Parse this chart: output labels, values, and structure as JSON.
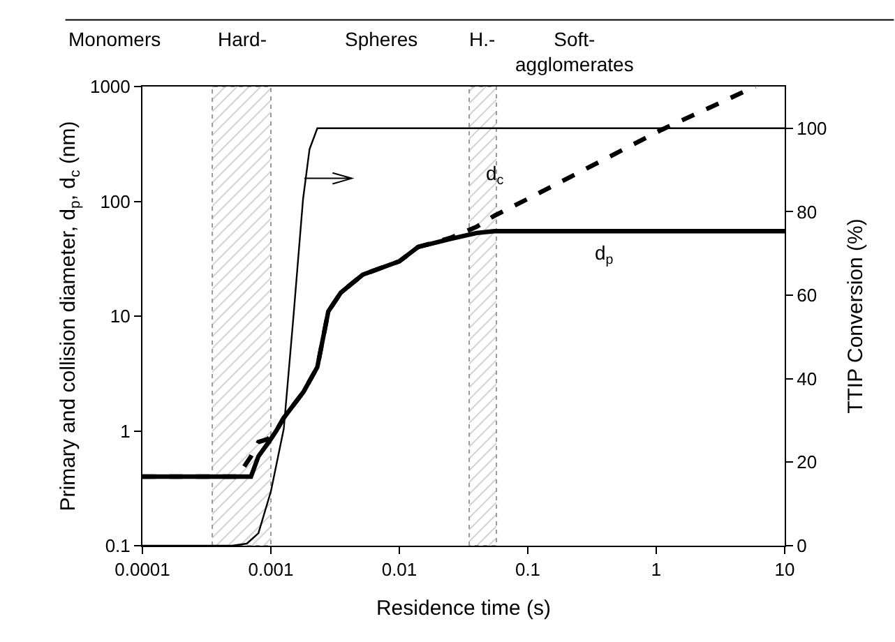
{
  "chart_data": {
    "type": "line",
    "xlabel": "Residence time (s)",
    "ylabel": "Primary and collision diameter, d$_{p}$, d$_{c}$ (nm)",
    "y2label": "TTIP Conversion (%)",
    "log": "xy",
    "xlim": [
      0.0001,
      10
    ],
    "xticks": [
      0.0001,
      0.001,
      0.01,
      0.1,
      1,
      10
    ],
    "ylim": [
      0.1,
      1000
    ],
    "yticks": [
      0.1,
      1,
      10,
      100,
      1000
    ],
    "y2lim": [
      0,
      110
    ],
    "y2ticks": [
      0,
      20,
      40,
      60,
      80,
      100
    ],
    "marker": "none",
    "series": [
      {
        "color": "#000000",
        "line_style": "solid",
        "x": [
          0.0001,
          0.0007,
          0.0008,
          0.001,
          0.0011,
          0.00126,
          0.0018,
          0.0023,
          0.0028,
          0.0035,
          0.0052,
          0.01,
          0.014,
          0.025,
          0.04,
          0.055,
          10
        ],
        "values": [
          0.4,
          0.4,
          0.6,
          0.85,
          1,
          1.3,
          2.2,
          3.6,
          11,
          16,
          23,
          30,
          40,
          47,
          53,
          55,
          55
        ]
      },
      {
        "color": "#000000",
        "line_style": "dashed",
        "x": [
          0.0001,
          0.00055,
          0.0007,
          0.0008,
          0.00095,
          0.0011,
          0.00126,
          0.0018,
          0.0023,
          0.0028,
          0.0035,
          0.0052,
          0.01,
          0.014,
          0.025,
          0.04,
          0.055,
          0.1,
          1.1,
          5.9
        ],
        "values": [
          0.4,
          0.4,
          0.6,
          0.8,
          0.85,
          1,
          1.3,
          2.2,
          3.6,
          11,
          16,
          23,
          30,
          40,
          48,
          60,
          75,
          105,
          420,
          1000
        ]
      },
      {
        "color": "#000000",
        "line_style": "solid",
        "axis": "y2",
        "x": [
          0.0001,
          0.0005,
          0.00065,
          0.0008,
          0.001,
          0.00126,
          0.0015,
          0.00178,
          0.002,
          0.0023,
          10
        ],
        "values": [
          0,
          0,
          0.5,
          3,
          13,
          28,
          55,
          83,
          95,
          100,
          100
        ]
      }
    ],
    "bands": [
      {
        "axis": "x",
        "from": 0.00035,
        "to": 0.001,
        "label": "Hard-",
        "color": "#999999"
      },
      {
        "axis": "x",
        "from": 0.035,
        "to": 0.057,
        "label": "H.-",
        "color": "#999999"
      }
    ],
    "annotations": [
      "Monomers",
      "Spheres",
      "Soft-\nagglomerates",
      {
        "text": "d$_{c}$",
        "x": 0.055,
        "y": 170
      },
      "d$_{p}$"
    ]
  }
}
